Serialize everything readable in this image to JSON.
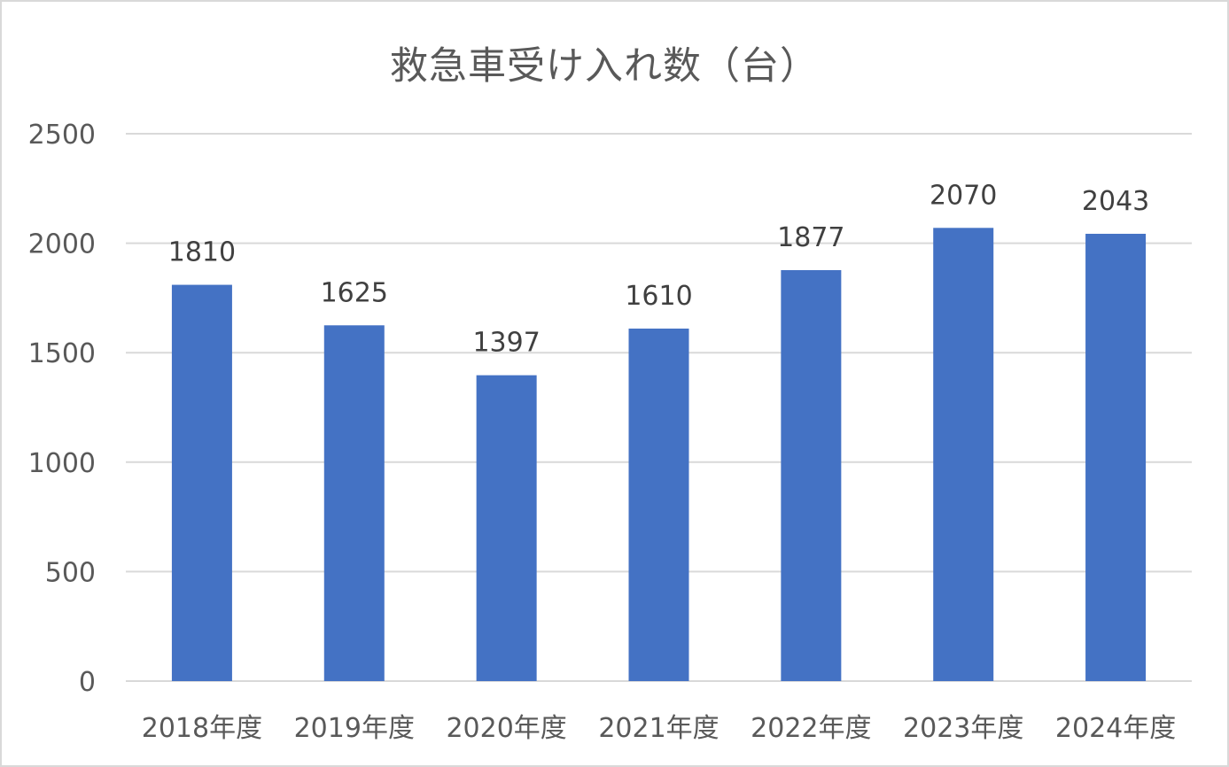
{
  "chart_data": {
    "type": "bar",
    "title": "救急車受け入れ数（台）",
    "categories": [
      "2018年度",
      "2019年度",
      "2020年度",
      "2021年度",
      "2022年度",
      "2023年度",
      "2024年度"
    ],
    "values": [
      1810,
      1625,
      1397,
      1610,
      1877,
      2070,
      2043
    ],
    "ylim": [
      0,
      2500
    ],
    "yticks": [
      0,
      500,
      1000,
      1500,
      2000,
      2500
    ],
    "xlabel": "",
    "ylabel": "",
    "grid": true,
    "legend": "none",
    "data_labels": true,
    "bar_color": "#4472C4"
  }
}
